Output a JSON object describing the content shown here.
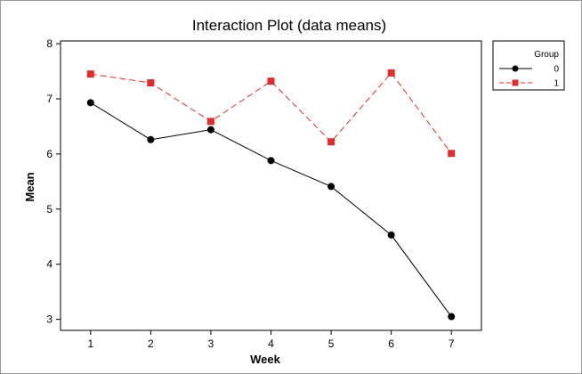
{
  "chart_data": {
    "type": "line",
    "title": "Interaction Plot (data means)",
    "xlabel": "Week",
    "ylabel": "Mean",
    "x": [
      1,
      2,
      3,
      4,
      5,
      6,
      7
    ],
    "xlim": [
      0.5,
      7.5
    ],
    "ylim": [
      2.8,
      8.05
    ],
    "yticks": [
      3,
      4,
      5,
      6,
      7,
      8
    ],
    "xticks": [
      1,
      2,
      3,
      4,
      5,
      6,
      7
    ],
    "grid": false,
    "legend_position": "top-right",
    "legend_title": "Group",
    "series": [
      {
        "name": "0",
        "values": [
          6.93,
          6.26,
          6.44,
          5.88,
          5.41,
          4.53,
          3.05
        ],
        "color": "#000000",
        "marker": "circle",
        "line_style": "solid"
      },
      {
        "name": "1",
        "values": [
          7.45,
          7.29,
          6.59,
          7.32,
          6.22,
          7.47,
          6.01
        ],
        "color": "#e32b2b",
        "marker": "square",
        "line_style": "dashed"
      }
    ]
  }
}
